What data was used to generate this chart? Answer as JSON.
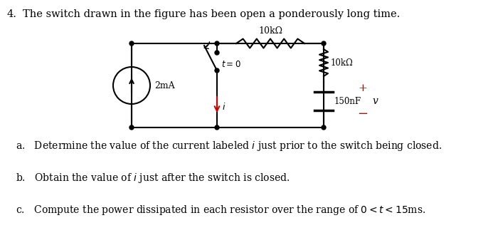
{
  "title_number": "4.",
  "title_text": "The switch drawn in the figure has been open a ponderously long time.",
  "background_color": "#ffffff",
  "text_color": "#000000",
  "circuit_line_color": "#000000",
  "resistor_top_label": "10kΩ",
  "resistor_mid_label": "10kΩ",
  "capacitor_label": "150nF",
  "source_label": "2mA",
  "switch_label": "t = 0",
  "voltage_label": "v",
  "current_label": "i",
  "plus_label": "+",
  "minus_label": "−",
  "q_a": "a.   Determine the value of the current labeled $i$ just prior to the switch being closed.",
  "q_b": "b.   Obtain the value of $i$ just after the switch is closed.",
  "q_c": "c.   Compute the power dissipated in each resistor over the range of $0 < t < 15$ms.",
  "arrow_color": "#cc0000",
  "plus_color": "#cc0000",
  "minus_color": "#cc0000"
}
